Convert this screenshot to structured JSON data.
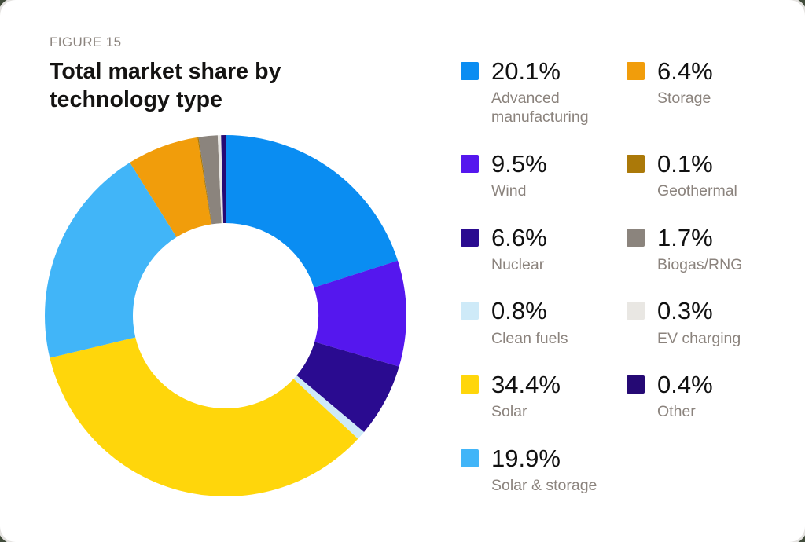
{
  "card": {
    "figure_label": "FIGURE 15",
    "title": "Total market share by technology type"
  },
  "colors": {
    "page_background": "#414C3B",
    "card_background": "#FFFFFF",
    "title_text": "#141312",
    "muted_text": "#8B837D",
    "value_text": "#111111"
  },
  "chart_data": {
    "type": "pie",
    "subtype": "donut",
    "title": "Total market share by technology type",
    "figure_label": "FIGURE 15",
    "start_angle_deg": -90,
    "direction": "clockwise",
    "inner_radius_ratio": 0.513,
    "legend_position": "right",
    "value_format": "percent_one_decimal",
    "series": [
      {
        "name": "Advanced manufacturing",
        "value": 20.1,
        "color": "#0A8DF2"
      },
      {
        "name": "Wind",
        "value": 9.5,
        "color": "#5517EE"
      },
      {
        "name": "Nuclear",
        "value": 6.6,
        "color": "#2A0B90"
      },
      {
        "name": "Clean fuels",
        "value": 0.8,
        "color": "#CEEAF8"
      },
      {
        "name": "Solar",
        "value": 34.4,
        "color": "#FFD60B"
      },
      {
        "name": "Solar & storage",
        "value": 19.9,
        "color": "#41B5F8"
      },
      {
        "name": "Storage",
        "value": 6.4,
        "color": "#F19D0B"
      },
      {
        "name": "Geothermal",
        "value": 0.1,
        "color": "#AB7909"
      },
      {
        "name": "Biogas/RNG",
        "value": 1.7,
        "color": "#8B847D"
      },
      {
        "name": "EV charging",
        "value": 0.3,
        "color": "#E9E7E3"
      },
      {
        "name": "Other",
        "value": 0.4,
        "color": "#250974"
      }
    ],
    "legend_display_order": [
      "Advanced manufacturing",
      "Storage",
      "Wind",
      "Geothermal",
      "Nuclear",
      "Biogas/RNG",
      "Clean fuels",
      "EV charging",
      "Solar",
      "Other",
      "Solar & storage"
    ]
  }
}
